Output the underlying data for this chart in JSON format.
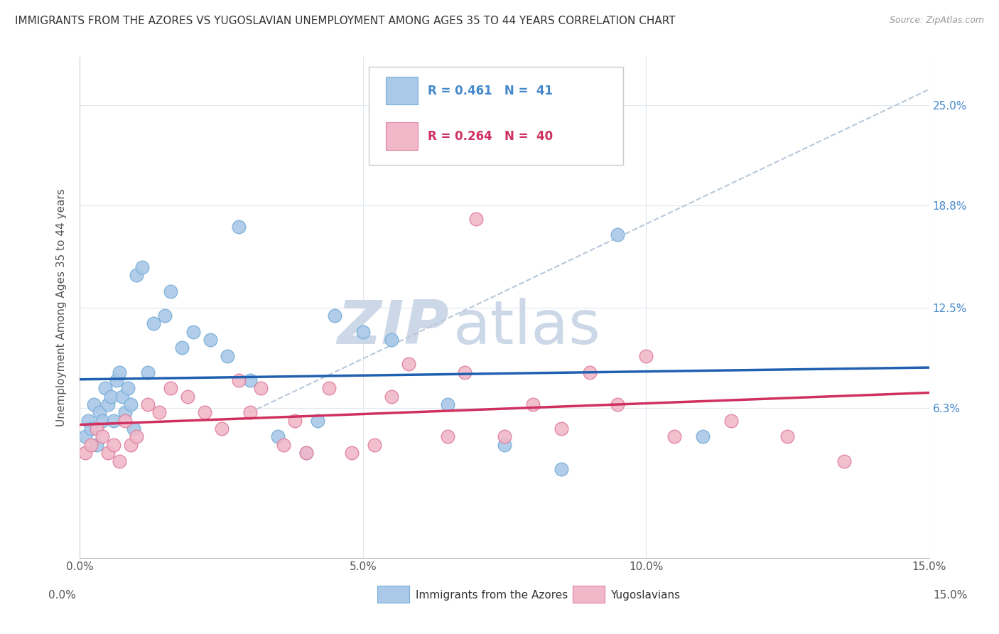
{
  "title": "IMMIGRANTS FROM THE AZORES VS YUGOSLAVIAN UNEMPLOYMENT AMONG AGES 35 TO 44 YEARS CORRELATION CHART",
  "source": "Source: ZipAtlas.com",
  "ylabel": "Unemployment Among Ages 35 to 44 years",
  "xlabel_blue": "Immigrants from the Azores",
  "xlabel_pink": "Yugoslavians",
  "xlim": [
    0.0,
    15.0
  ],
  "ylim": [
    -3.0,
    28.0
  ],
  "ytick_vals": [
    6.3,
    12.5,
    18.8,
    25.0
  ],
  "ytick_labels": [
    "6.3%",
    "12.5%",
    "18.8%",
    "25.0%"
  ],
  "xtick_vals": [
    0.0,
    5.0,
    10.0,
    15.0
  ],
  "xtick_labels": [
    "0.0%",
    "5.0%",
    "10.0%",
    "15.0%"
  ],
  "legend_line1": "R = 0.461   N =  41",
  "legend_line2": "R = 0.264   N =  40",
  "blue_color": "#aac8e8",
  "blue_edge_color": "#7ab0d8",
  "pink_color": "#f0b8c8",
  "pink_edge_color": "#e080a0",
  "blue_line_color": "#2060b0",
  "pink_line_color": "#d03060",
  "dashed_line_color": "#b8c8d8",
  "grid_color": "#e0e8f0",
  "watermark_color": "#ccd8e8",
  "blue_scatter_x": [
    0.1,
    0.15,
    0.2,
    0.25,
    0.3,
    0.35,
    0.4,
    0.45,
    0.5,
    0.55,
    0.6,
    0.65,
    0.7,
    0.75,
    0.8,
    0.85,
    0.9,
    0.95,
    1.0,
    1.1,
    1.3,
    1.5,
    1.8,
    2.0,
    2.3,
    2.6,
    3.0,
    3.5,
    4.0,
    4.5,
    5.0,
    5.5,
    6.5,
    7.5,
    8.5,
    9.5,
    11.0,
    1.2,
    1.6,
    2.8,
    4.2
  ],
  "blue_scatter_y": [
    4.5,
    5.5,
    5.0,
    6.5,
    4.0,
    6.0,
    5.5,
    7.5,
    6.5,
    7.0,
    5.5,
    8.0,
    8.5,
    7.0,
    6.0,
    7.5,
    6.5,
    5.0,
    14.5,
    15.0,
    11.5,
    12.0,
    10.0,
    11.0,
    10.5,
    9.5,
    8.0,
    4.5,
    3.5,
    12.0,
    11.0,
    10.5,
    6.5,
    4.0,
    2.5,
    17.0,
    4.5,
    8.5,
    13.5,
    17.5,
    5.5
  ],
  "pink_scatter_x": [
    0.1,
    0.2,
    0.3,
    0.4,
    0.5,
    0.6,
    0.7,
    0.8,
    0.9,
    1.0,
    1.2,
    1.4,
    1.6,
    1.9,
    2.2,
    2.5,
    2.8,
    3.2,
    3.6,
    4.0,
    4.4,
    4.8,
    5.2,
    5.8,
    6.5,
    7.0,
    7.5,
    8.0,
    8.5,
    9.5,
    10.5,
    11.5,
    12.5,
    13.5,
    3.0,
    3.8,
    5.5,
    6.8,
    9.0,
    10.0
  ],
  "pink_scatter_y": [
    3.5,
    4.0,
    5.0,
    4.5,
    3.5,
    4.0,
    3.0,
    5.5,
    4.0,
    4.5,
    6.5,
    6.0,
    7.5,
    7.0,
    6.0,
    5.0,
    8.0,
    7.5,
    4.0,
    3.5,
    7.5,
    3.5,
    4.0,
    9.0,
    4.5,
    18.0,
    4.5,
    6.5,
    5.0,
    6.5,
    4.5,
    5.5,
    4.5,
    3.0,
    6.0,
    5.5,
    7.0,
    8.5,
    8.5,
    9.5
  ]
}
